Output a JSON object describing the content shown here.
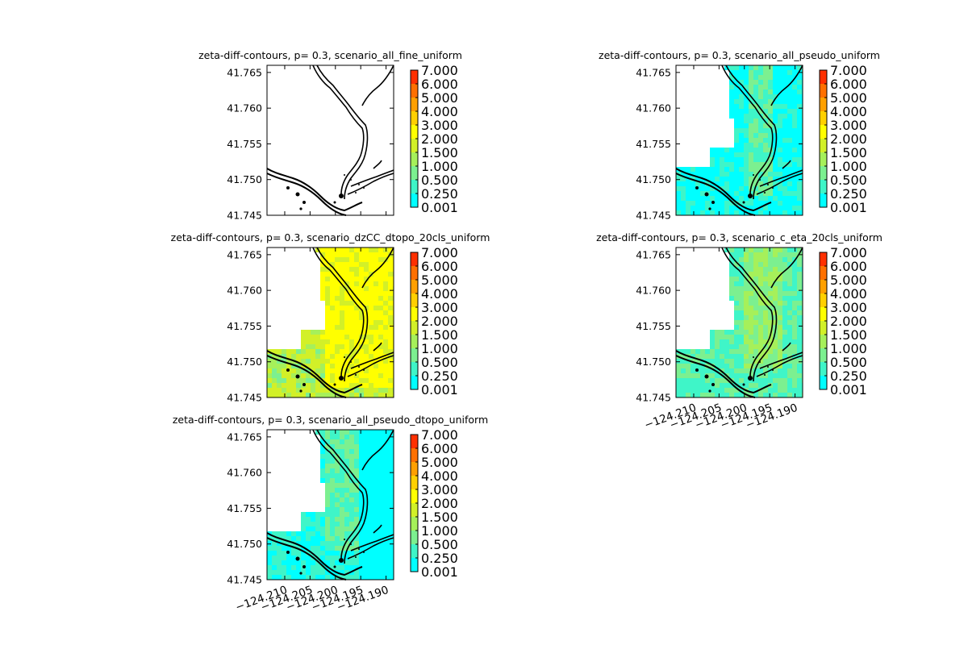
{
  "chart_data": {
    "type": "heatmap",
    "shared": {
      "xlim": [
        -124.2135,
        -124.1885
      ],
      "ylim": [
        41.745,
        41.766
      ],
      "ytick_labels": [
        "41.745",
        "41.750",
        "41.755",
        "41.760",
        "41.765"
      ],
      "ytick_values": [
        41.745,
        41.75,
        41.755,
        41.76,
        41.765
      ],
      "xtick_labels": [
        "−124.210",
        "−124.205",
        "−124.200",
        "−124.195",
        "−124.190"
      ],
      "xtick_values": [
        -124.21,
        -124.205,
        -124.2,
        -124.195,
        -124.19
      ],
      "colorbar_levels": [
        "0.001",
        "0.250",
        "0.500",
        "1.000",
        "1.500",
        "2.000",
        "3.000",
        "4.000",
        "5.000",
        "6.000",
        "7.000"
      ],
      "colorbar_colors": [
        "#00ffff",
        "#3ff5c8",
        "#7cf090",
        "#a6f05a",
        "#d2f028",
        "#ffff00",
        "#ffd000",
        "#ffa000",
        "#ff7000",
        "#ff3000",
        "#e00000"
      ],
      "grid": false
    },
    "panels": [
      {
        "title": "zeta-diff-contours, p= 0.3, scenario_all_fine_uniform",
        "fill_level": "none",
        "x_ticks_shown": false
      },
      {
        "title": "zeta-diff-contours, p= 0.3, scenario_all_pseudo_uniform",
        "fill_level": "low",
        "x_ticks_shown": false
      },
      {
        "title": "zeta-diff-contours, p= 0.3, scenario_dzCC_dtopo_20cls_uniform",
        "fill_level": "high",
        "x_ticks_shown": false
      },
      {
        "title": "zeta-diff-contours, p= 0.3, scenario_c_eta_20cls_uniform",
        "fill_level": "medium",
        "x_ticks_shown": true
      },
      {
        "title": "zeta-diff-contours, p= 0.3, scenario_all_pseudo_dtopo_uniform",
        "fill_level": "low-medium",
        "x_ticks_shown": true
      }
    ]
  }
}
